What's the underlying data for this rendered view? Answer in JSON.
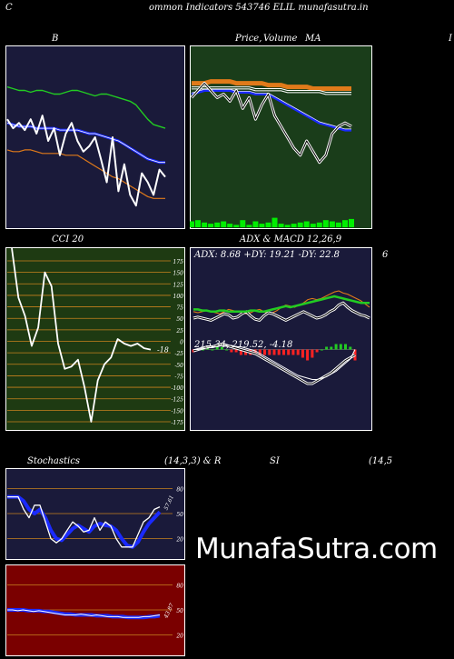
{
  "header": {
    "left_letter": "C",
    "title": "ommon Indicators 543746  ELIL munafasutra.in"
  },
  "labels": {
    "bb": "B",
    "price": "Price,",
    "volume_overlap": "Volume",
    "ma_tail": "MA",
    "right_cut": "I",
    "cci": "CCI 20",
    "adx_title": "ADX  & MACD 12,26,9",
    "six": "6",
    "adx_values": "ADX: 8.68  +DY: 19.21 -DY: 22.8",
    "macd_values": "215.34,  219.52,  -4.18",
    "stoch": "Stochastics",
    "stoch_params": "(14,3,3) & R",
    "si": "SI",
    "si_params": "(14,5",
    "watermark": "MunafaSutra.com"
  },
  "colors": {
    "bb_bg": "#1a1a3a",
    "price_bg": "#1a3d1a",
    "cci_bg": "#1e3a12",
    "adx_bg": "#1a1a3a",
    "stoch_bg": "#1a1a3a",
    "rsi_bg": "#7a0000",
    "orange": "#e07a1a",
    "green_band": "#22cc22",
    "blue": "#1a2aff"
  },
  "chart_data": [
    {
      "type": "line",
      "panel": "bollinger",
      "series": [
        {
          "values": [
            78,
            77,
            76,
            76,
            75,
            76,
            76,
            75,
            74,
            74,
            75,
            76,
            76,
            75,
            74,
            73,
            74,
            74,
            73,
            72,
            71,
            70,
            68,
            64,
            60,
            57,
            56,
            55
          ]
        },
        {
          "values": [
            58,
            57,
            56,
            56,
            56,
            55,
            55,
            55,
            55,
            54,
            54,
            54,
            54,
            53,
            52,
            52,
            51,
            50,
            49,
            48,
            46,
            44,
            42,
            40,
            38,
            37,
            36,
            36
          ]
        },
        {
          "values": [
            43,
            42,
            42,
            43,
            43,
            42,
            41,
            41,
            41,
            41,
            40,
            40,
            40,
            38,
            36,
            34,
            32,
            30,
            28,
            27,
            25,
            23,
            21,
            19,
            17,
            16,
            16,
            16
          ]
        },
        {
          "values": [
            60,
            55,
            58,
            54,
            60,
            52,
            62,
            48,
            55,
            40,
            52,
            58,
            48,
            42,
            45,
            50,
            38,
            25,
            50,
            20,
            35,
            18,
            12,
            30,
            25,
            18,
            32,
            28
          ]
        }
      ]
    },
    {
      "type": "line",
      "panel": "price_volume_ma",
      "series": [
        {
          "values": [
            80,
            80,
            80,
            81,
            81,
            81,
            81,
            80,
            80,
            80,
            80,
            80,
            79,
            79,
            79,
            78,
            78,
            78,
            78,
            77,
            77,
            77,
            77,
            77,
            77,
            77
          ]
        },
        {
          "values": [
            78,
            78,
            78,
            78,
            78,
            78,
            78,
            78,
            78,
            78,
            77,
            77,
            77,
            77,
            77,
            76,
            76,
            76,
            76,
            76,
            76,
            75,
            75,
            75,
            75,
            75
          ]
        },
        {
          "values": [
            74,
            75,
            76,
            76,
            76,
            76,
            76,
            75,
            75,
            75,
            74,
            74,
            74,
            72,
            70,
            68,
            66,
            64,
            62,
            60,
            58,
            57,
            56,
            55,
            54,
            54
          ]
        },
        {
          "values": [
            72,
            76,
            80,
            76,
            72,
            74,
            70,
            76,
            66,
            72,
            60,
            68,
            74,
            62,
            56,
            50,
            44,
            40,
            48,
            42,
            36,
            40,
            52,
            56,
            58,
            56
          ]
        }
      ],
      "volume": [
        5,
        6,
        4,
        3,
        4,
        5,
        3,
        2,
        6,
        2,
        5,
        3,
        4,
        8,
        3,
        2,
        3,
        4,
        5,
        3,
        4,
        6,
        5,
        4,
        6,
        7
      ]
    },
    {
      "type": "line",
      "panel": "cci",
      "yticks": [
        175,
        150,
        125,
        100,
        75,
        50,
        25,
        0,
        -25,
        -50,
        -75,
        -100,
        -125,
        -150,
        -175
      ],
      "last_value_label": "-18",
      "series": [
        {
          "values": [
            260,
            95,
            55,
            -10,
            30,
            150,
            120,
            -5,
            -60,
            -55,
            -40,
            -100,
            -175,
            -85,
            -50,
            -35,
            5,
            -5,
            -10,
            -5,
            -15,
            -18
          ]
        }
      ]
    },
    {
      "type": "line",
      "panel": "adx_macd",
      "adx": 8.68,
      "plus_dy": 19.21,
      "minus_dy": 22.8,
      "macd": 215.34,
      "signal": 219.52,
      "histogram": -4.18,
      "series": [
        {
          "values": [
            20,
            21,
            20,
            19,
            18,
            20,
            22,
            24,
            23,
            20,
            21,
            24,
            26,
            22,
            19,
            18,
            22,
            25,
            24,
            22,
            20,
            18,
            20,
            22,
            24,
            26,
            24,
            22,
            20,
            21,
            23,
            26,
            28,
            32,
            34,
            30,
            27,
            25,
            23,
            22,
            20
          ]
        },
        {
          "values": [
            26,
            25,
            26,
            27,
            26,
            25,
            24,
            26,
            28,
            27,
            26,
            25,
            24,
            25,
            27,
            28,
            26,
            24,
            25,
            27,
            30,
            32,
            31,
            30,
            32,
            34,
            37,
            38,
            37,
            38,
            40,
            42,
            44,
            45,
            43,
            42,
            40,
            38,
            36,
            33,
            30
          ]
        },
        {
          "values": [
            16,
            16,
            15,
            15,
            14,
            14,
            15,
            15,
            14,
            14,
            14,
            14,
            14,
            15,
            15,
            14,
            14,
            15,
            16,
            17,
            18,
            19,
            18,
            19,
            20,
            21,
            22,
            23,
            24,
            25,
            26,
            27,
            28,
            27,
            26,
            25,
            24,
            23,
            22,
            22,
            22
          ]
        },
        {
          "values": [
            218,
            219,
            220,
            221,
            221,
            222,
            223,
            222,
            221,
            220,
            219,
            218,
            217,
            216,
            214,
            212,
            210,
            208,
            206,
            204,
            202,
            200,
            198,
            196,
            194,
            194,
            196,
            198,
            200,
            202,
            205,
            208,
            211,
            213,
            215
          ]
        },
        {
          "values": [
            219,
            219,
            220,
            220,
            221,
            221,
            222,
            222,
            222,
            221,
            221,
            220,
            219,
            218,
            216,
            214,
            212,
            210,
            208,
            206,
            204,
            202,
            200,
            199,
            198,
            197,
            197,
            198,
            199,
            201,
            203,
            206,
            209,
            212,
            219
          ]
        },
        {
          "values": [
            -1,
            0,
            0,
            1,
            0,
            1,
            1,
            0,
            -1,
            -1,
            -2,
            -2,
            -2,
            -2,
            -2,
            -2,
            -2,
            -2,
            -2,
            -2,
            -2,
            -2,
            -2,
            -3,
            -4,
            -3,
            -1,
            0,
            1,
            1,
            2,
            2,
            2,
            1,
            -4
          ]
        }
      ]
    },
    {
      "type": "line",
      "panel": "stochastics",
      "yticks": [
        80,
        50,
        20
      ],
      "last_value_label": "57.61",
      "series": [
        {
          "values": [
            70,
            70,
            70,
            55,
            45,
            60,
            60,
            40,
            20,
            15,
            20,
            30,
            40,
            35,
            28,
            30,
            45,
            30,
            40,
            35,
            20,
            10,
            10,
            10,
            25,
            40,
            45,
            55,
            58
          ]
        },
        {
          "values": [
            70,
            70,
            70,
            65,
            55,
            50,
            55,
            45,
            30,
            20,
            18,
            25,
            32,
            36,
            32,
            28,
            35,
            38,
            36,
            35,
            30,
            20,
            12,
            10,
            16,
            28,
            38,
            45,
            52
          ]
        }
      ]
    },
    {
      "type": "line",
      "panel": "rsi",
      "yticks": [
        80,
        50,
        20
      ],
      "last_value_label": "43.87",
      "series": [
        {
          "values": [
            50,
            50,
            49,
            50,
            49,
            48,
            49,
            48,
            47,
            46,
            45,
            44,
            44,
            44,
            45,
            44,
            43,
            44,
            43,
            42,
            42,
            42,
            41,
            41,
            41,
            41,
            42,
            42,
            43,
            44
          ]
        },
        {
          "values": [
            50,
            50,
            50,
            50,
            49,
            49,
            49,
            48,
            48,
            47,
            46,
            45,
            45,
            44,
            44,
            44,
            44,
            43,
            43,
            43,
            42,
            42,
            42,
            41,
            41,
            41,
            41,
            42,
            42,
            43
          ]
        }
      ]
    }
  ]
}
